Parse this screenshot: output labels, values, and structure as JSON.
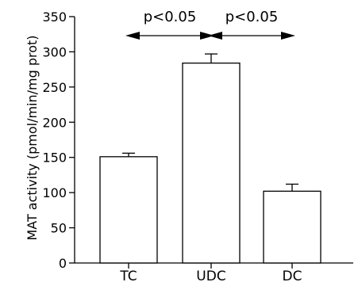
{
  "chart_data": {
    "type": "bar",
    "title": "",
    "xlabel": "",
    "ylabel": "MAT activity (pmol/min/mg prot)",
    "categories": [
      "TC",
      "UDC",
      "DC"
    ],
    "values": [
      151,
      284,
      102
    ],
    "errors": [
      5,
      13,
      10
    ],
    "ylim": [
      0,
      350
    ],
    "yticks": [
      0,
      50,
      100,
      150,
      200,
      250,
      300,
      350
    ],
    "grid": false,
    "bar_fill": "#ffffff",
    "bar_stroke": "#000000",
    "annotations": [
      {
        "text": "p<0.05",
        "from": "TC",
        "to": "UDC",
        "y": 330
      },
      {
        "text": "p<0.05",
        "from": "UDC",
        "to": "DC",
        "y": 330
      }
    ]
  }
}
